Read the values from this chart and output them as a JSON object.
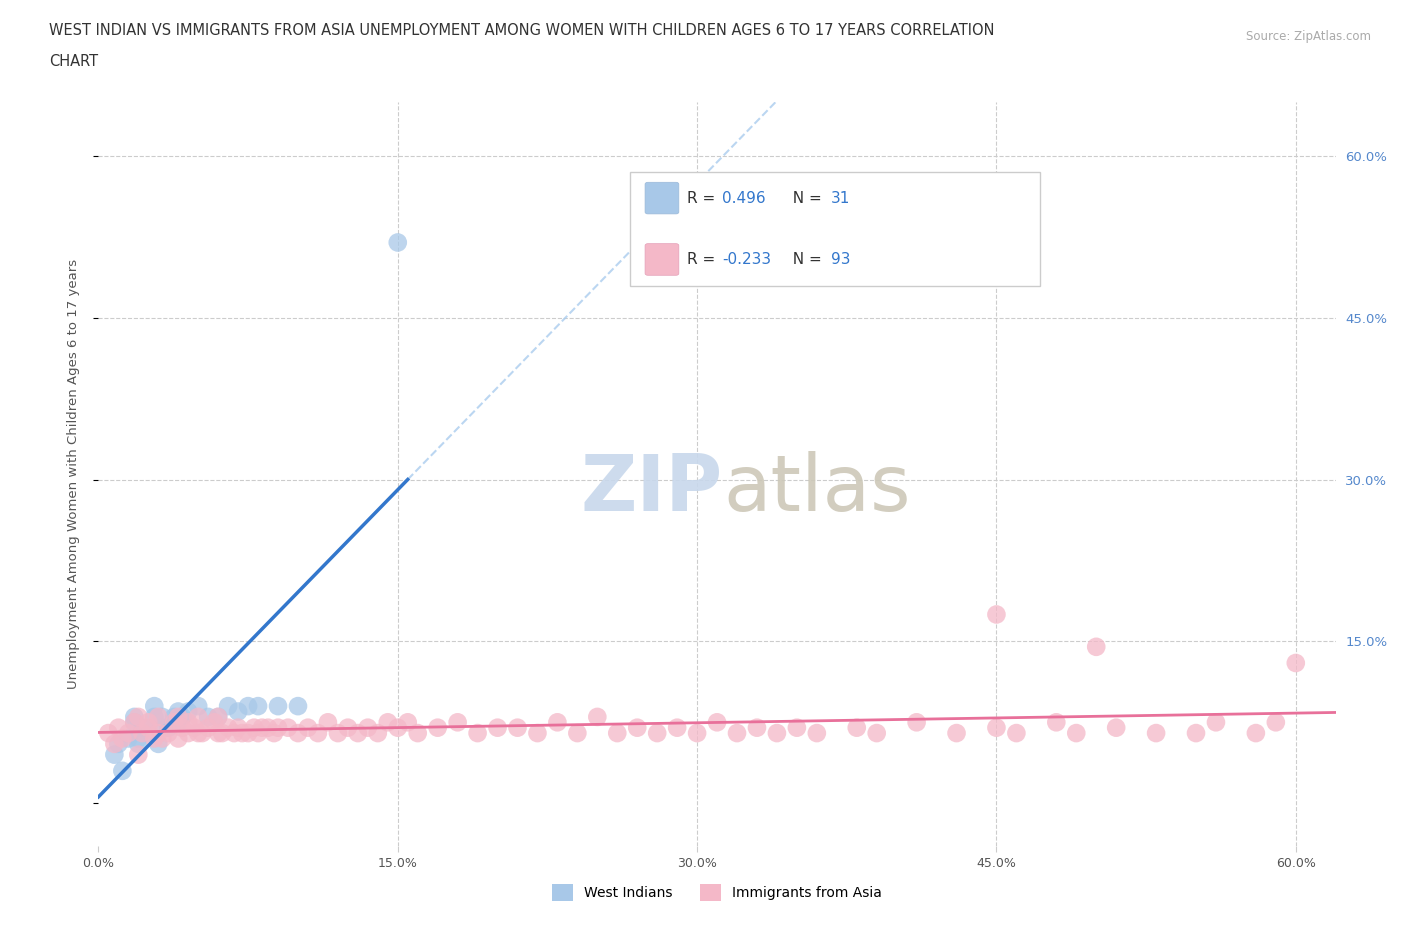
{
  "title_line1": "WEST INDIAN VS IMMIGRANTS FROM ASIA UNEMPLOYMENT AMONG WOMEN WITH CHILDREN AGES 6 TO 17 YEARS CORRELATION",
  "title_line2": "CHART",
  "source": "Source: ZipAtlas.com",
  "ylabel": "Unemployment Among Women with Children Ages 6 to 17 years",
  "xlim": [
    0.0,
    0.62
  ],
  "ylim": [
    -0.04,
    0.65
  ],
  "xticks": [
    0.0,
    0.15,
    0.3,
    0.45,
    0.6
  ],
  "xticklabels": [
    "0.0%",
    "15.0%",
    "30.0%",
    "45.0%",
    "60.0%"
  ],
  "yticks_right": [
    0.15,
    0.3,
    0.45,
    0.6
  ],
  "yticklabels_right": [
    "15.0%",
    "30.0%",
    "45.0%",
    "60.0%"
  ],
  "grid_color": "#cccccc",
  "west_indian_color": "#a8c8e8",
  "asia_color": "#f4b8c8",
  "west_indian_line_color": "#3377cc",
  "asia_line_color": "#e8709a",
  "legend_R1": "0.496",
  "legend_N1": "31",
  "legend_R2": "-0.233",
  "legend_N2": "93",
  "background_color": "#ffffff",
  "wi_x": [
    0.008,
    0.01,
    0.012,
    0.015,
    0.018,
    0.018,
    0.02,
    0.02,
    0.022,
    0.025,
    0.028,
    0.028,
    0.03,
    0.032,
    0.032,
    0.035,
    0.038,
    0.04,
    0.04,
    0.042,
    0.045,
    0.05,
    0.055,
    0.06,
    0.065,
    0.07,
    0.075,
    0.08,
    0.09,
    0.1,
    0.15
  ],
  "wi_y": [
    0.045,
    0.055,
    0.03,
    0.06,
    0.075,
    0.08,
    0.055,
    0.06,
    0.07,
    0.065,
    0.08,
    0.09,
    0.055,
    0.07,
    0.08,
    0.07,
    0.08,
    0.075,
    0.085,
    0.08,
    0.085,
    0.09,
    0.08,
    0.08,
    0.09,
    0.085,
    0.09,
    0.09,
    0.09,
    0.09,
    0.52
  ],
  "asia_x": [
    0.005,
    0.008,
    0.01,
    0.012,
    0.015,
    0.018,
    0.02,
    0.02,
    0.022,
    0.025,
    0.025,
    0.028,
    0.03,
    0.03,
    0.032,
    0.035,
    0.038,
    0.04,
    0.04,
    0.042,
    0.045,
    0.045,
    0.048,
    0.05,
    0.05,
    0.052,
    0.055,
    0.058,
    0.06,
    0.06,
    0.062,
    0.065,
    0.068,
    0.07,
    0.072,
    0.075,
    0.078,
    0.08,
    0.082,
    0.085,
    0.088,
    0.09,
    0.095,
    0.1,
    0.105,
    0.11,
    0.115,
    0.12,
    0.125,
    0.13,
    0.135,
    0.14,
    0.145,
    0.15,
    0.155,
    0.16,
    0.17,
    0.18,
    0.19,
    0.2,
    0.21,
    0.22,
    0.23,
    0.24,
    0.25,
    0.26,
    0.27,
    0.28,
    0.29,
    0.3,
    0.31,
    0.32,
    0.33,
    0.34,
    0.35,
    0.36,
    0.38,
    0.39,
    0.41,
    0.43,
    0.45,
    0.46,
    0.48,
    0.49,
    0.51,
    0.53,
    0.55,
    0.56,
    0.58,
    0.59,
    0.6,
    0.45,
    0.5
  ],
  "asia_y": [
    0.065,
    0.055,
    0.07,
    0.06,
    0.065,
    0.075,
    0.045,
    0.08,
    0.065,
    0.07,
    0.075,
    0.06,
    0.065,
    0.08,
    0.06,
    0.065,
    0.075,
    0.06,
    0.08,
    0.07,
    0.075,
    0.065,
    0.07,
    0.065,
    0.08,
    0.065,
    0.07,
    0.075,
    0.065,
    0.08,
    0.065,
    0.07,
    0.065,
    0.07,
    0.065,
    0.065,
    0.07,
    0.065,
    0.07,
    0.07,
    0.065,
    0.07,
    0.07,
    0.065,
    0.07,
    0.065,
    0.075,
    0.065,
    0.07,
    0.065,
    0.07,
    0.065,
    0.075,
    0.07,
    0.075,
    0.065,
    0.07,
    0.075,
    0.065,
    0.07,
    0.07,
    0.065,
    0.075,
    0.065,
    0.08,
    0.065,
    0.07,
    0.065,
    0.07,
    0.065,
    0.075,
    0.065,
    0.07,
    0.065,
    0.07,
    0.065,
    0.07,
    0.065,
    0.075,
    0.065,
    0.07,
    0.065,
    0.075,
    0.065,
    0.07,
    0.065,
    0.065,
    0.075,
    0.065,
    0.075,
    0.13,
    0.175,
    0.145
  ]
}
